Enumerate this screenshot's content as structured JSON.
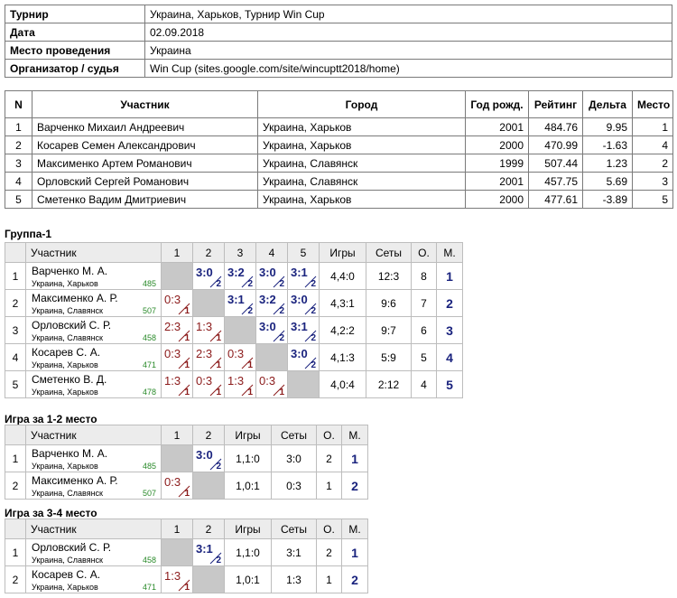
{
  "info": {
    "rows": [
      [
        "Турнир",
        "Украина, Харьков, Турнир Win Cup"
      ],
      [
        "Дата",
        "02.09.2018"
      ],
      [
        "Место проведения",
        "Украина"
      ],
      [
        "Организатор / судья",
        "Win Cup (sites.google.com/site/wincuptt2018/home)"
      ]
    ]
  },
  "players": {
    "headers": [
      "N",
      "Участник",
      "Город",
      "Год рожд.",
      "Рейтинг",
      "Дельта",
      "Место"
    ],
    "rows": [
      [
        "1",
        "Варченко Михаил Андреевич",
        "Украина, Харьков",
        "2001",
        "484.76",
        "9.95",
        "1"
      ],
      [
        "2",
        "Косарев Семен Александрович",
        "Украина, Харьков",
        "2000",
        "470.99",
        "-1.63",
        "4"
      ],
      [
        "3",
        "Максименко Артем Романович",
        "Украина, Славянск",
        "1999",
        "507.44",
        "1.23",
        "2"
      ],
      [
        "4",
        "Орловский Сергей Романович",
        "Украина, Славянск",
        "2001",
        "457.75",
        "5.69",
        "3"
      ],
      [
        "5",
        "Сметенко Вадим Дмитриевич",
        "Украина, Харьков",
        "2000",
        "477.61",
        "-3.89",
        "5"
      ]
    ]
  },
  "groups": [
    {
      "title": "Группа-1",
      "headers": [
        "Участник",
        "1",
        "2",
        "3",
        "4",
        "5",
        "Игры",
        "Сеты",
        "О.",
        "М."
      ],
      "rows": [
        {
          "num": "1",
          "name": "Варченко М. А.",
          "city": "Украина, Харьков",
          "rating": "485",
          "scores": [
            null,
            {
              "score": "3:0",
              "pts": "2"
            },
            {
              "score": "3:2",
              "pts": "2"
            },
            {
              "score": "3:0",
              "pts": "2"
            },
            {
              "score": "3:1",
              "pts": "2"
            }
          ],
          "games": "4,4:0",
          "sets": "12:3",
          "points": "8",
          "place": "1"
        },
        {
          "num": "2",
          "name": "Максименко А. Р.",
          "city": "Украина, Славянск",
          "rating": "507",
          "scores": [
            {
              "score": "0:3",
              "pts": "1"
            },
            null,
            {
              "score": "3:1",
              "pts": "2"
            },
            {
              "score": "3:2",
              "pts": "2"
            },
            {
              "score": "3:0",
              "pts": "2"
            }
          ],
          "games": "4,3:1",
          "sets": "9:6",
          "points": "7",
          "place": "2"
        },
        {
          "num": "3",
          "name": "Орловский С. Р.",
          "city": "Украина, Славянск",
          "rating": "458",
          "scores": [
            {
              "score": "2:3",
              "pts": "1"
            },
            {
              "score": "1:3",
              "pts": "1"
            },
            null,
            {
              "score": "3:0",
              "pts": "2"
            },
            {
              "score": "3:1",
              "pts": "2"
            }
          ],
          "games": "4,2:2",
          "sets": "9:7",
          "points": "6",
          "place": "3"
        },
        {
          "num": "4",
          "name": "Косарев С. А.",
          "city": "Украина, Харьков",
          "rating": "471",
          "scores": [
            {
              "score": "0:3",
              "pts": "1"
            },
            {
              "score": "2:3",
              "pts": "1"
            },
            {
              "score": "0:3",
              "pts": "1"
            },
            null,
            {
              "score": "3:0",
              "pts": "2"
            }
          ],
          "games": "4,1:3",
          "sets": "5:9",
          "points": "5",
          "place": "4"
        },
        {
          "num": "5",
          "name": "Сметенко В. Д.",
          "city": "Украина, Харьков",
          "rating": "478",
          "scores": [
            {
              "score": "1:3",
              "pts": "1"
            },
            {
              "score": "0:3",
              "pts": "1"
            },
            {
              "score": "1:3",
              "pts": "1"
            },
            {
              "score": "0:3",
              "pts": "1"
            },
            null
          ],
          "games": "4,0:4",
          "sets": "2:12",
          "points": "4",
          "place": "5"
        }
      ]
    },
    {
      "title": "Игра за 1-2 место",
      "headers": [
        "Участник",
        "1",
        "2",
        "Игры",
        "Сеты",
        "О.",
        "М."
      ],
      "rows": [
        {
          "num": "1",
          "name": "Варченко М. А.",
          "city": "Украина, Харьков",
          "rating": "485",
          "scores": [
            null,
            {
              "score": "3:0",
              "pts": "2"
            }
          ],
          "games": "1,1:0",
          "sets": "3:0",
          "points": "2",
          "place": "1"
        },
        {
          "num": "2",
          "name": "Максименко А. Р.",
          "city": "Украина, Славянск",
          "rating": "507",
          "scores": [
            {
              "score": "0:3",
              "pts": "1"
            },
            null
          ],
          "games": "1,0:1",
          "sets": "0:3",
          "points": "1",
          "place": "2"
        }
      ]
    },
    {
      "title": "Игра за 3-4 место",
      "headers": [
        "Участник",
        "1",
        "2",
        "Игры",
        "Сеты",
        "О.",
        "М."
      ],
      "rows": [
        {
          "num": "1",
          "name": "Орловский С. Р.",
          "city": "Украина, Славянск",
          "rating": "458",
          "scores": [
            null,
            {
              "score": "3:1",
              "pts": "2"
            }
          ],
          "games": "1,1:0",
          "sets": "3:1",
          "points": "2",
          "place": "1"
        },
        {
          "num": "2",
          "name": "Косарев С. А.",
          "city": "Украина, Харьков",
          "rating": "471",
          "scores": [
            {
              "score": "1:3",
              "pts": "1"
            },
            null
          ],
          "games": "1,0:1",
          "sets": "1:3",
          "points": "1",
          "place": "2"
        }
      ]
    }
  ]
}
